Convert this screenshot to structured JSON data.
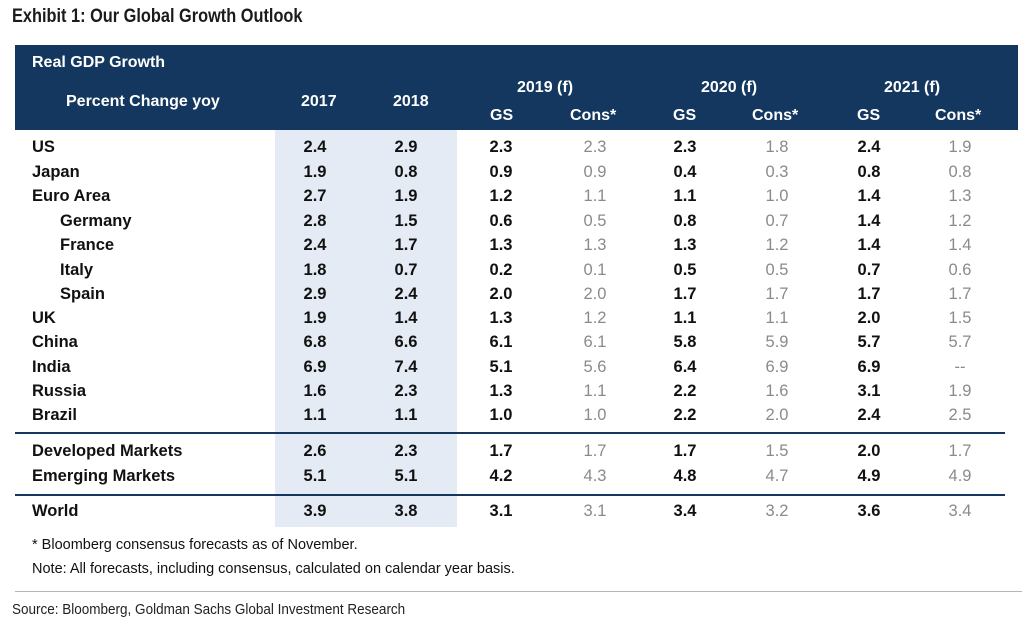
{
  "title": "Exhibit 1: Our Global Growth Outlook",
  "header": {
    "section_label": "Real GDP Growth",
    "row_label": "Percent Change yoy",
    "col_2017": "2017",
    "col_2018": "2018",
    "year_2019": "2019 (f)",
    "year_2020": "2020 (f)",
    "year_2021": "2021 (f)",
    "gs": "GS",
    "cons": "Cons*"
  },
  "rows": [
    {
      "label": "US",
      "v2017": "2.4",
      "v2018": "2.9",
      "gs2019": "2.3",
      "cons2019": "2.3",
      "gs2020": "2.3",
      "cons2020": "1.8",
      "gs2021": "2.4",
      "cons2021": "1.9"
    },
    {
      "label": "Japan",
      "v2017": "1.9",
      "v2018": "0.8",
      "gs2019": "0.9",
      "cons2019": "0.9",
      "gs2020": "0.4",
      "cons2020": "0.3",
      "gs2021": "0.8",
      "cons2021": "0.8"
    },
    {
      "label": "Euro Area",
      "v2017": "2.7",
      "v2018": "1.9",
      "gs2019": "1.2",
      "cons2019": "1.1",
      "gs2020": "1.1",
      "cons2020": "1.0",
      "gs2021": "1.4",
      "cons2021": "1.3"
    },
    {
      "label": "Germany",
      "v2017": "2.8",
      "v2018": "1.5",
      "gs2019": "0.6",
      "cons2019": "0.5",
      "gs2020": "0.8",
      "cons2020": "0.7",
      "gs2021": "1.4",
      "cons2021": "1.2"
    },
    {
      "label": "France",
      "v2017": "2.4",
      "v2018": "1.7",
      "gs2019": "1.3",
      "cons2019": "1.3",
      "gs2020": "1.3",
      "cons2020": "1.2",
      "gs2021": "1.4",
      "cons2021": "1.4"
    },
    {
      "label": "Italy",
      "v2017": "1.8",
      "v2018": "0.7",
      "gs2019": "0.2",
      "cons2019": "0.1",
      "gs2020": "0.5",
      "cons2020": "0.5",
      "gs2021": "0.7",
      "cons2021": "0.6"
    },
    {
      "label": "Spain",
      "v2017": "2.9",
      "v2018": "2.4",
      "gs2019": "2.0",
      "cons2019": "2.0",
      "gs2020": "1.7",
      "cons2020": "1.7",
      "gs2021": "1.7",
      "cons2021": "1.7"
    },
    {
      "label": "UK",
      "v2017": "1.9",
      "v2018": "1.4",
      "gs2019": "1.3",
      "cons2019": "1.2",
      "gs2020": "1.1",
      "cons2020": "1.1",
      "gs2021": "2.0",
      "cons2021": "1.5"
    },
    {
      "label": "China",
      "v2017": "6.8",
      "v2018": "6.6",
      "gs2019": "6.1",
      "cons2019": "6.1",
      "gs2020": "5.8",
      "cons2020": "5.9",
      "gs2021": "5.7",
      "cons2021": "5.7"
    },
    {
      "label": "India",
      "v2017": "6.9",
      "v2018": "7.4",
      "gs2019": "5.1",
      "cons2019": "5.6",
      "gs2020": "6.4",
      "cons2020": "6.9",
      "gs2021": "6.9",
      "cons2021": "--"
    },
    {
      "label": "Russia",
      "v2017": "1.6",
      "v2018": "2.3",
      "gs2019": "1.3",
      "cons2019": "1.1",
      "gs2020": "2.2",
      "cons2020": "1.6",
      "gs2021": "3.1",
      "cons2021": "1.9"
    },
    {
      "label": "Brazil",
      "v2017": "1.1",
      "v2018": "1.1",
      "gs2019": "1.0",
      "cons2019": "1.0",
      "gs2020": "2.2",
      "cons2020": "2.0",
      "gs2021": "2.4",
      "cons2021": "2.5"
    },
    {
      "label": "Developed Markets",
      "v2017": "2.6",
      "v2018": "2.3",
      "gs2019": "1.7",
      "cons2019": "1.7",
      "gs2020": "1.7",
      "cons2020": "1.5",
      "gs2021": "2.0",
      "cons2021": "1.7"
    },
    {
      "label": "Emerging Markets",
      "v2017": "5.1",
      "v2018": "5.1",
      "gs2019": "4.2",
      "cons2019": "4.3",
      "gs2020": "4.8",
      "cons2020": "4.7",
      "gs2021": "4.9",
      "cons2021": "4.9"
    },
    {
      "label": "World",
      "v2017": "3.9",
      "v2018": "3.8",
      "gs2019": "3.1",
      "cons2019": "3.1",
      "gs2020": "3.4",
      "cons2020": "3.2",
      "gs2021": "3.6",
      "cons2021": "3.4"
    }
  ],
  "notes": {
    "footnote": "* Bloomberg consensus forecasts as of November.",
    "note": "Note: All forecasts, including consensus, calculated on calendar year basis."
  },
  "source": "Source: Bloomberg, Goldman Sachs Global Investment Research",
  "colors": {
    "header_bg": "#13375f",
    "highlight_band": "#e5ebf4",
    "consensus_text": "#8a8a8a"
  }
}
